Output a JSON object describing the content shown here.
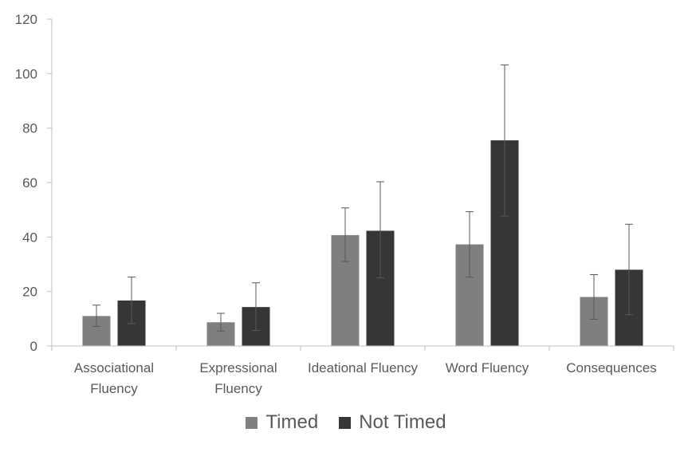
{
  "chart_data": {
    "type": "bar",
    "categories": [
      "Associational Fluency",
      "Expressional Fluency",
      "Ideational Fluency",
      "Word Fluency",
      "Consequences"
    ],
    "category_lines": [
      [
        "Associational",
        "Fluency"
      ],
      [
        "Expressional",
        "Fluency"
      ],
      [
        "Ideational Fluency"
      ],
      [
        "Word Fluency"
      ],
      [
        "Consequences"
      ]
    ],
    "series": [
      {
        "name": "Timed",
        "color": "#7f7f7f",
        "values": [
          11,
          8.7,
          40.7,
          37.3,
          18
        ],
        "error_low": [
          7.2,
          5.5,
          31,
          25.3,
          9.8
        ],
        "error_high": [
          15,
          12,
          50.7,
          49.3,
          26.2
        ]
      },
      {
        "name": "Not Timed",
        "color": "#363636",
        "values": [
          16.7,
          14.3,
          42.3,
          75.5,
          28
        ],
        "error_low": [
          8.2,
          5.7,
          25,
          47.7,
          11.5
        ],
        "error_high": [
          25.3,
          23.2,
          60.3,
          103.2,
          44.7
        ]
      }
    ],
    "ylim": [
      0,
      120
    ],
    "yticks": [
      0,
      20,
      40,
      60,
      80,
      100,
      120
    ],
    "legend_position": "bottom",
    "grid": false,
    "title": "",
    "xlabel": "",
    "ylabel": ""
  }
}
